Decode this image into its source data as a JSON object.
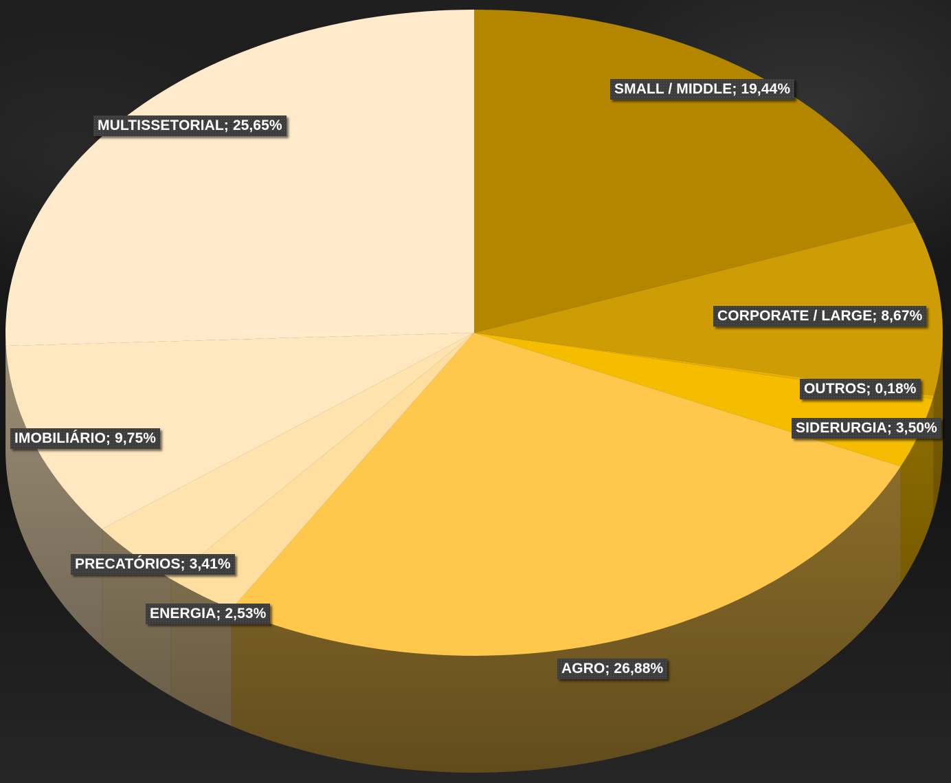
{
  "chart_data": {
    "type": "pie",
    "style": "3d",
    "title": "",
    "slices": [
      {
        "label": "SMALL / MIDDLE",
        "value": 19.44,
        "display": "SMALL / MIDDLE; 19,44%",
        "color": "#B48600"
      },
      {
        "label": "CORPORATE / LARGE",
        "value": 8.67,
        "display": "CORPORATE / LARGE; 8,67%",
        "color": "#CE9C05"
      },
      {
        "label": "OUTROS",
        "value": 0.18,
        "display": "OUTROS; 0,18%",
        "color": "#E4AF0B"
      },
      {
        "label": "SIDERURGIA",
        "value": 3.5,
        "display": "SIDERURGIA; 3,50%",
        "color": "#F5BC00"
      },
      {
        "label": "AGRO",
        "value": 26.88,
        "display": "AGRO; 26,88%",
        "color": "#FFC84C"
      },
      {
        "label": "ENERGIA",
        "value": 2.53,
        "display": "ENERGIA; 2,53%",
        "color": "#FFDFA0"
      },
      {
        "label": "PRECATÓRIOS",
        "value": 3.41,
        "display": "PRECATÓRIOS; 3,41%",
        "color": "#FFE4B0"
      },
      {
        "label": "IMOBILIÁRIO",
        "value": 9.75,
        "display": "IMOBILIÁRIO; 9,75%",
        "color": "#FFE8C0"
      },
      {
        "label": "MULTISSETORIAL",
        "value": 25.65,
        "display": "MULTISSETORIAL; 25,65%",
        "color": "#FFEACB"
      }
    ],
    "legend": "none",
    "labels": "on-slice"
  }
}
